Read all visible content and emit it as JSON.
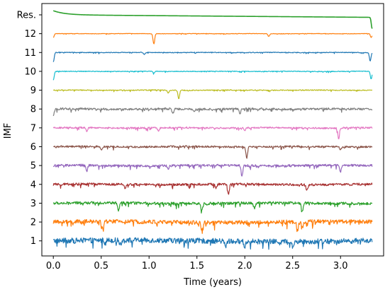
{
  "chart_data": {
    "type": "line",
    "title": "",
    "xlabel": "Time (years)",
    "ylabel": "IMF",
    "xlim": [
      -0.12,
      3.45
    ],
    "ylim": [
      0.2,
      13.6
    ],
    "x_ticks": [
      0.0,
      0.5,
      1.0,
      1.5,
      2.0,
      2.5,
      3.0
    ],
    "x_tick_labels": [
      "0.0",
      "0.5",
      "1.0",
      "1.5",
      "2.0",
      "2.5",
      "3.0"
    ],
    "y_ticks": [
      1,
      2,
      3,
      4,
      5,
      6,
      7,
      8,
      9,
      10,
      11,
      12,
      13
    ],
    "y_tick_labels": [
      "1",
      "2",
      "3",
      "4",
      "5",
      "6",
      "7",
      "8",
      "9",
      "10",
      "11",
      "12",
      "Res."
    ],
    "x_range": [
      0.0,
      3.33
    ],
    "grid": false,
    "legend": "none",
    "series": [
      {
        "level": 1,
        "color": "#1f77b4",
        "spread": 0.46,
        "spikes": [
          [
            1.8,
            -0.35
          ],
          [
            2.0,
            -0.3
          ],
          [
            2.5,
            -0.3
          ],
          [
            0.7,
            -0.25
          ]
        ]
      },
      {
        "level": 2,
        "color": "#ff7f0e",
        "spread": 0.36,
        "spikes": [
          [
            0.52,
            -0.45
          ],
          [
            1.55,
            -0.4
          ],
          [
            2.55,
            -0.5
          ],
          [
            2.6,
            -0.35
          ]
        ]
      },
      {
        "level": 3,
        "color": "#2ca02c",
        "spread": 0.24,
        "spikes": [
          [
            0.68,
            -0.45
          ],
          [
            1.55,
            -0.35
          ],
          [
            2.6,
            -0.45
          ],
          [
            2.1,
            -0.3
          ]
        ]
      },
      {
        "level": 4,
        "color": "#a83232",
        "spread": 0.2,
        "spikes": [
          [
            1.83,
            -0.55
          ],
          [
            0.75,
            -0.25
          ],
          [
            2.65,
            -0.3
          ],
          [
            1.7,
            -0.2
          ]
        ]
      },
      {
        "level": 5,
        "color": "#9467bd",
        "spread": 0.2,
        "spikes": [
          [
            1.97,
            -0.6
          ],
          [
            0.35,
            -0.3
          ],
          [
            3.0,
            -0.35
          ],
          [
            1.2,
            -0.2
          ]
        ]
      },
      {
        "level": 6,
        "color": "#8c564b",
        "spread": 0.16,
        "spikes": [
          [
            2.02,
            -0.6
          ],
          [
            0.5,
            -0.2
          ],
          [
            3.0,
            -0.15
          ]
        ]
      },
      {
        "level": 7,
        "color": "#e377c2",
        "spread": 0.14,
        "spikes": [
          [
            2.98,
            -0.55
          ],
          [
            0.35,
            -0.2
          ],
          [
            1.1,
            -0.15
          ],
          [
            2.0,
            -0.15
          ]
        ]
      },
      {
        "level": 8,
        "color": "#7f7f7f",
        "spread": 0.18,
        "spikes": [
          [
            0.0,
            -0.35
          ],
          [
            1.25,
            -0.25
          ],
          [
            1.95,
            -0.25
          ],
          [
            1.47,
            -0.15
          ]
        ]
      },
      {
        "level": 9,
        "color": "#bcbd22",
        "spread": 0.08,
        "spikes": [
          [
            1.31,
            -0.45
          ],
          [
            1.2,
            -0.15
          ]
        ]
      },
      {
        "level": 10,
        "color": "#17becf",
        "spread": 0.06,
        "spikes": [
          [
            0.0,
            -0.45
          ],
          [
            1.05,
            -0.1
          ],
          [
            3.32,
            -0.4
          ]
        ]
      },
      {
        "level": 11,
        "color": "#1f77b4",
        "spread": 0.06,
        "spikes": [
          [
            0.0,
            -0.5
          ],
          [
            0.95,
            -0.1
          ],
          [
            3.31,
            -0.45
          ]
        ]
      },
      {
        "level": 12,
        "color": "#ff7f0e",
        "spread": 0.04,
        "spikes": [
          [
            1.05,
            -0.55
          ],
          [
            0.0,
            -0.2
          ],
          [
            2.25,
            -0.15
          ],
          [
            3.32,
            -0.2
          ]
        ]
      },
      {
        "level": 13,
        "color": "#2ca02c",
        "spread": 0.0,
        "spikes": [
          [
            3.33,
            -0.6
          ]
        ]
      }
    ]
  }
}
